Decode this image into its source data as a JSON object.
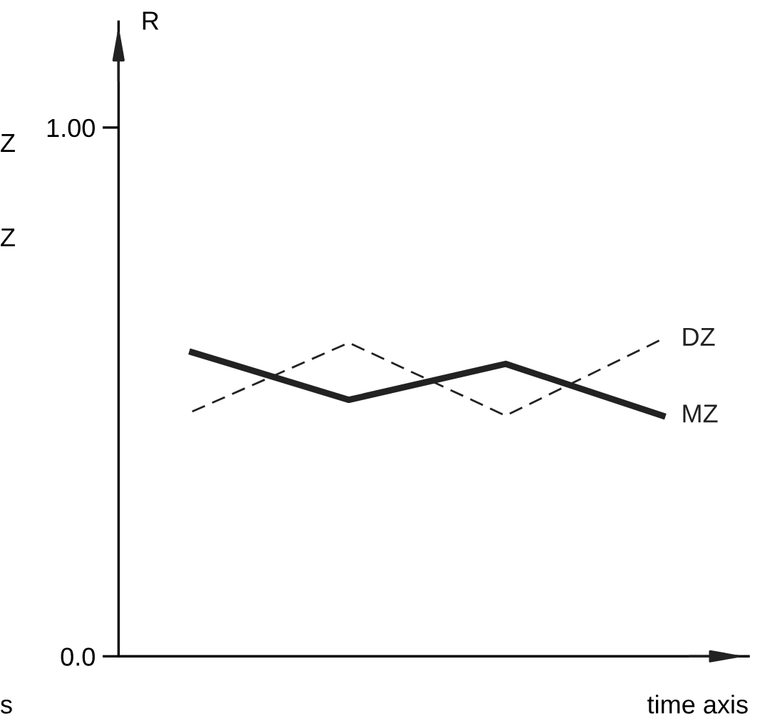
{
  "chart_data": {
    "type": "line",
    "ylabel": "R",
    "xlabel": "time axis",
    "categories": [
      null,
      null,
      null,
      null
    ],
    "series": [
      {
        "name": "MZ",
        "color": "#222222",
        "values": [
          0.575,
          0.485,
          0.553,
          0.455
        ],
        "line_style": "solid"
      },
      {
        "name": "DZ",
        "color": "#222222",
        "values": [
          0.463,
          0.593,
          0.455,
          0.6
        ],
        "line_style": "dashed"
      }
    ],
    "ylim": [
      0,
      1.2
    ],
    "yticks": [
      {
        "value": 0,
        "label": "0.0"
      },
      {
        "value": 1,
        "label": "1.00"
      }
    ],
    "annotations": [
      "Z",
      "Z",
      "s"
    ],
    "grid": false,
    "legend": false,
    "marker": "none"
  }
}
